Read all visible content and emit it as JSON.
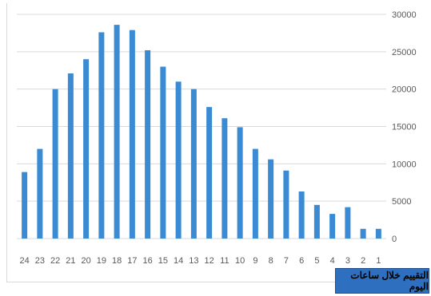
{
  "chart_data": {
    "type": "bar",
    "title": "التقييم خلال ساعات اليوم",
    "categories": [
      "24",
      "23",
      "22",
      "21",
      "20",
      "19",
      "18",
      "17",
      "16",
      "15",
      "14",
      "13",
      "12",
      "11",
      "10",
      "9",
      "8",
      "7",
      "6",
      "5",
      "4",
      "3",
      "2",
      "1"
    ],
    "values": [
      8900,
      12000,
      20000,
      22100,
      24000,
      27600,
      28600,
      27900,
      25200,
      23000,
      21000,
      20000,
      17600,
      16100,
      14900,
      12000,
      10600,
      9100,
      6300,
      4500,
      3300,
      4200,
      1300,
      1300
    ],
    "ylim": [
      0,
      30000
    ],
    "yticks": [
      0,
      5000,
      10000,
      15000,
      20000,
      25000,
      30000
    ],
    "xlabel": "",
    "ylabel": "",
    "y_axis_side": "right",
    "grid": true,
    "legend": "none",
    "bar_color": "#3a8bd4"
  }
}
